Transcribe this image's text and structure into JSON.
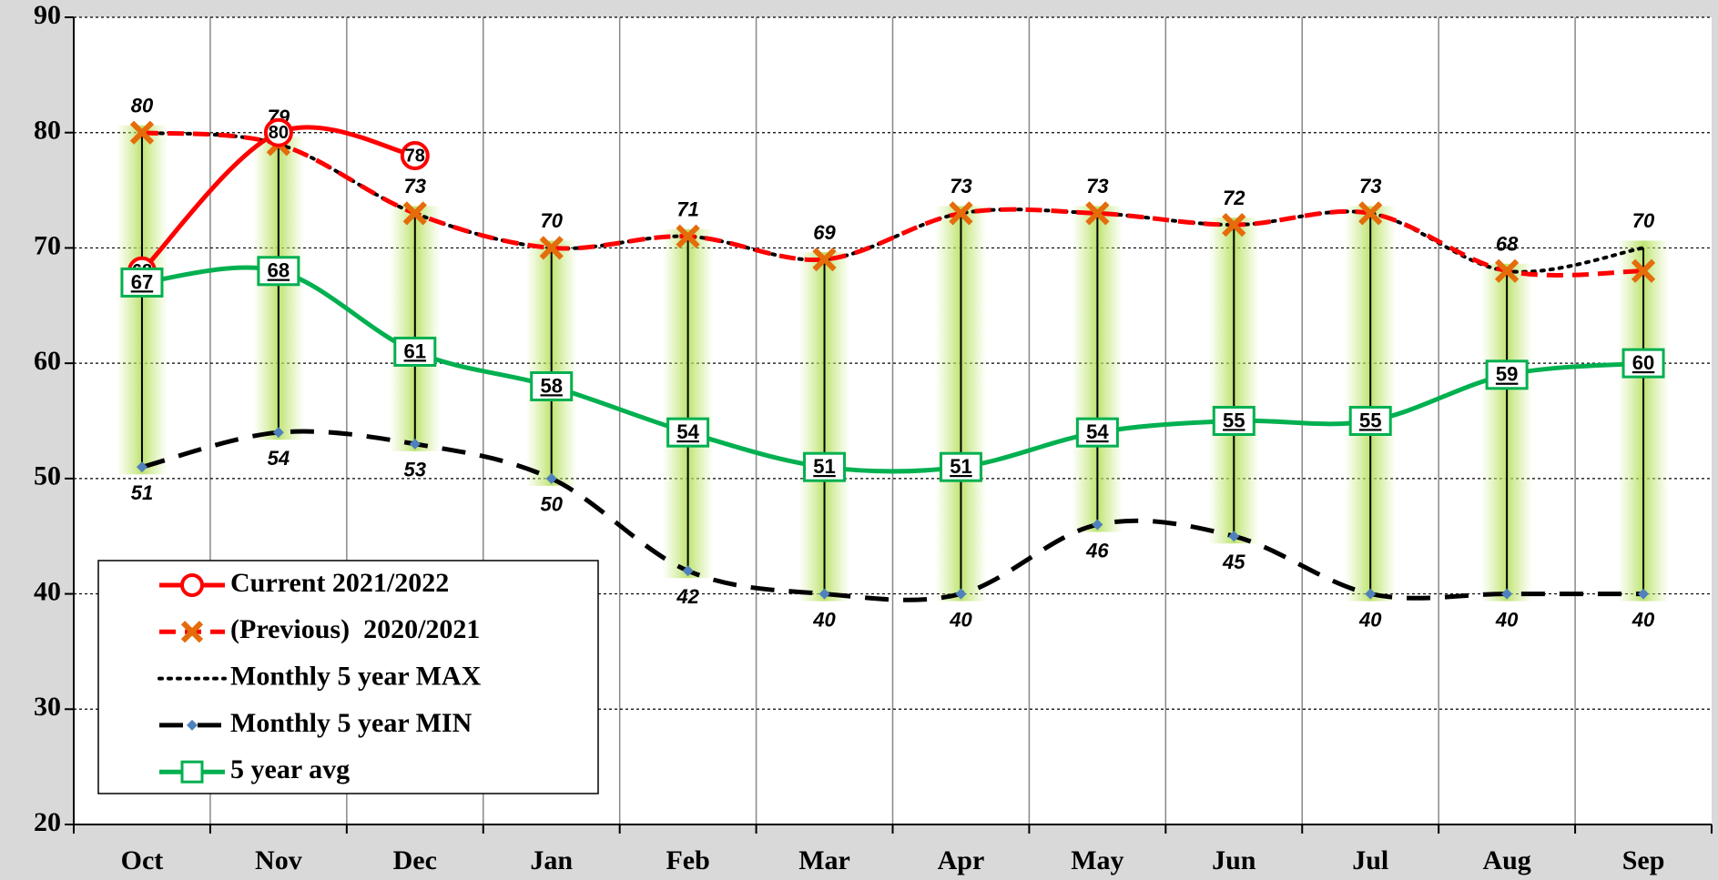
{
  "chart_data": {
    "type": "line",
    "categories": [
      "Oct",
      "Nov",
      "Dec",
      "Jan",
      "Feb",
      "Mar",
      "Apr",
      "May",
      "Jun",
      "Jul",
      "Aug",
      "Sep"
    ],
    "series": [
      {
        "name": "Current 2021/2022",
        "color": "#ff0000",
        "marker": "circle",
        "dash": "solid",
        "data_labels": "inside",
        "values": [
          68,
          80,
          78,
          null,
          null,
          null,
          null,
          null,
          null,
          null,
          null,
          null
        ]
      },
      {
        "name": "(Previous)  2020/2021",
        "color": "#ff0000",
        "marker": "x",
        "dash": "dashed",
        "values": [
          80,
          79,
          73,
          70,
          71,
          69,
          73,
          73,
          72,
          73,
          68,
          68
        ]
      },
      {
        "name": "Monthly 5 year MAX",
        "color": "#000000",
        "marker": "none",
        "dash": "dotted",
        "data_labels": "above",
        "values": [
          80,
          79,
          73,
          70,
          71,
          69,
          73,
          73,
          72,
          73,
          68,
          70
        ]
      },
      {
        "name": "Monthly 5 year MIN",
        "color": "#000000",
        "marker": "diamond",
        "dash": "longdash",
        "data_labels": "below",
        "values": [
          51,
          54,
          53,
          50,
          42,
          40,
          40,
          46,
          45,
          40,
          40,
          40
        ]
      },
      {
        "name": "5 year avg",
        "color": "#00b050",
        "marker": "square",
        "dash": "solid",
        "data_labels": "inside",
        "values": [
          67,
          68,
          61,
          58,
          54,
          51,
          51,
          54,
          55,
          55,
          59,
          60
        ]
      }
    ],
    "range_bars": true,
    "ylim": [
      20,
      90
    ],
    "yticks": [
      20,
      30,
      40,
      50,
      60,
      70,
      80,
      90
    ],
    "grid": true,
    "legend": "lower left"
  }
}
